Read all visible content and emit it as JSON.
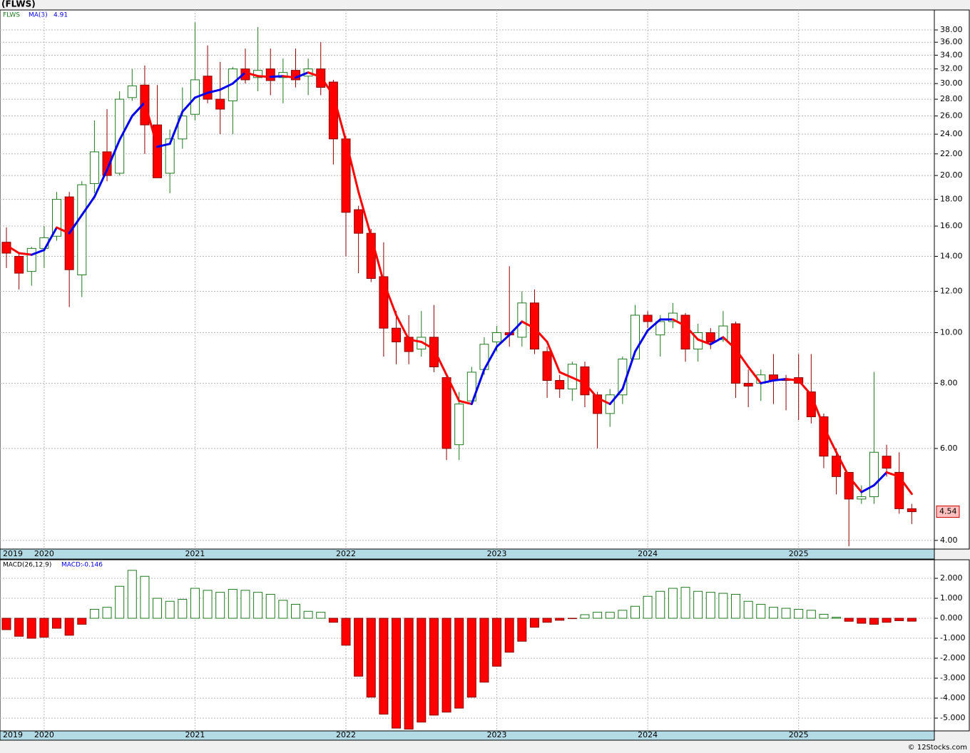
{
  "chart_data": [
    {
      "type": "candlestick",
      "title": "(FLWS)",
      "symbol": "FLWS",
      "categories": [
        "2019",
        null,
        null,
        "2020",
        null,
        null,
        null,
        null,
        null,
        null,
        null,
        null,
        null,
        null,
        null,
        "2021",
        null,
        null,
        null,
        null,
        null,
        null,
        null,
        null,
        null,
        null,
        null,
        "2022",
        null,
        null,
        null,
        null,
        null,
        null,
        null,
        null,
        null,
        null,
        null,
        "2023",
        null,
        null,
        null,
        null,
        null,
        null,
        null,
        null,
        null,
        null,
        null,
        "2024",
        null,
        null,
        null,
        null,
        null,
        null,
        null,
        null,
        null,
        null,
        null,
        "2025",
        null,
        null,
        null,
        null,
        null,
        null,
        null,
        null,
        null
      ],
      "open": [
        14.9,
        14.0,
        13.1,
        14.5,
        15.3,
        18.2,
        12.9,
        19.3,
        22.2,
        20.2,
        28.2,
        29.8,
        25.0,
        20.2,
        23.5,
        26.2,
        31.0,
        28.0,
        27.8,
        32.0,
        30.8,
        32.0,
        30.8,
        31.8,
        31.0,
        32.0,
        30.2,
        23.5,
        17.2,
        15.5,
        12.8,
        10.2,
        9.8,
        9.3,
        9.8,
        8.2,
        6.1,
        7.4,
        8.5,
        9.6,
        10.0,
        9.8,
        11.4,
        9.2,
        8.1,
        7.8,
        8.6,
        7.6,
        7.0,
        7.6,
        8.9,
        10.8,
        9.9,
        10.5,
        10.8,
        9.3,
        10.0,
        9.7,
        10.4,
        8.0,
        8.0,
        8.3,
        8.15,
        8.2,
        7.7,
        6.9,
        5.8,
        5.4,
        4.8,
        4.85,
        5.8,
        5.4,
        4.6
      ],
      "high": [
        15.9,
        14.2,
        14.6,
        16.0,
        18.6,
        18.6,
        19.5,
        25.5,
        26.8,
        29.0,
        32.0,
        32.5,
        29.8,
        24.5,
        29.5,
        39.3,
        35.5,
        33.0,
        32.3,
        35.0,
        38.5,
        35.0,
        33.5,
        35.0,
        33.5,
        36.0,
        30.5,
        23.8,
        17.5,
        15.8,
        14.9,
        11.0,
        10.8,
        11.0,
        11.3,
        8.3,
        7.7,
        8.6,
        9.8,
        10.3,
        13.4,
        12.0,
        12.1,
        9.4,
        8.3,
        8.8,
        8.8,
        7.7,
        7.8,
        9.0,
        11.3,
        11.0,
        10.8,
        11.4,
        10.9,
        10.4,
        10.2,
        11.0,
        10.5,
        8.5,
        8.5,
        9.1,
        8.3,
        9.1,
        9.1,
        7.0,
        6.0,
        5.4,
        5.1,
        8.4,
        6.1,
        5.9,
        4.7
      ],
      "low": [
        13.3,
        12.1,
        12.3,
        13.3,
        15.0,
        11.2,
        11.7,
        18.5,
        19.5,
        20.0,
        27.8,
        22.0,
        19.8,
        18.5,
        22.5,
        25.5,
        27.5,
        24.0,
        24.0,
        30.0,
        29.0,
        28.5,
        27.5,
        29.5,
        28.5,
        28.5,
        21.0,
        14.0,
        13.0,
        12.5,
        9.0,
        8.7,
        8.7,
        9.0,
        8.4,
        5.7,
        5.7,
        7.3,
        8.3,
        9.2,
        9.4,
        9.4,
        9.1,
        7.5,
        7.5,
        7.4,
        7.2,
        6.0,
        6.6,
        7.3,
        8.9,
        10.2,
        9.0,
        10.2,
        8.8,
        8.8,
        9.3,
        9.6,
        7.5,
        7.2,
        7.4,
        7.3,
        7.1,
        6.8,
        6.7,
        5.5,
        4.9,
        3.9,
        4.7,
        4.7,
        5.3,
        4.5,
        4.3
      ],
      "close": [
        14.2,
        13.0,
        14.5,
        15.2,
        18.0,
        13.2,
        19.2,
        22.2,
        20.0,
        28.0,
        29.7,
        25.0,
        19.8,
        23.5,
        26.0,
        30.5,
        28.0,
        26.8,
        32.0,
        30.5,
        31.8,
        30.4,
        31.5,
        30.5,
        32.0,
        29.5,
        23.5,
        17.0,
        15.5,
        12.7,
        10.2,
        9.6,
        9.2,
        9.8,
        8.6,
        6.0,
        7.3,
        8.4,
        9.5,
        10.0,
        9.9,
        11.4,
        9.3,
        8.1,
        7.8,
        8.7,
        7.6,
        7.0,
        7.6,
        8.9,
        10.8,
        10.5,
        10.5,
        10.9,
        9.3,
        10.0,
        9.6,
        10.3,
        8.0,
        7.9,
        8.3,
        8.1,
        8.1,
        8.0,
        6.9,
        5.8,
        5.3,
        4.8,
        4.85,
        5.9,
        5.5,
        4.6,
        4.54
      ],
      "up_color": "#1f7a1f",
      "down_color": "#ff0000",
      "ma": {
        "name": "MA(3)",
        "up_color": "#0000ee",
        "down_color": "#ff0000",
        "values": [
          14.7,
          14.2,
          14.1,
          14.4,
          15.9,
          15.5,
          16.8,
          18.2,
          20.5,
          23.4,
          26.0,
          27.6,
          22.7,
          23.0,
          26.5,
          28.2,
          28.8,
          29.2,
          30.0,
          31.5,
          31.0,
          30.9,
          31.0,
          30.8,
          31.5,
          30.9,
          28.5,
          23.3,
          18.6,
          15.3,
          12.5,
          10.8,
          9.7,
          9.6,
          9.3,
          8.3,
          7.4,
          7.3,
          8.5,
          9.4,
          9.9,
          10.5,
          10.2,
          9.6,
          8.4,
          8.2,
          8.0,
          7.5,
          7.3,
          7.8,
          9.2,
          10.1,
          10.6,
          10.6,
          10.3,
          9.7,
          9.5,
          9.8,
          9.3,
          8.6,
          8.0,
          8.1,
          8.15,
          8.1,
          7.6,
          6.6,
          5.9,
          5.3,
          4.95,
          5.1,
          5.4,
          5.3,
          4.91
        ]
      },
      "log_scale": true,
      "grid": true,
      "ylim": [
        3.85,
        41.5
      ],
      "yticks": [
        {
          "value": 4,
          "label": "4.00"
        },
        {
          "value": 6,
          "label": "6.00"
        },
        {
          "value": 8,
          "label": "8.00"
        },
        {
          "value": 10,
          "label": "10.00"
        },
        {
          "value": 12,
          "label": "12.00"
        },
        {
          "value": 14,
          "label": "14.00"
        },
        {
          "value": 16,
          "label": "16.00"
        },
        {
          "value": 18,
          "label": "18.00"
        },
        {
          "value": 20,
          "label": "20.00"
        },
        {
          "value": 22,
          "label": "22.00"
        },
        {
          "value": 24,
          "label": "24.00"
        },
        {
          "value": 26,
          "label": "26.00"
        },
        {
          "value": 28,
          "label": "28.00"
        },
        {
          "value": 30,
          "label": "30.00"
        },
        {
          "value": 32,
          "label": "32.00"
        },
        {
          "value": 34,
          "label": "34.00"
        },
        {
          "value": 36,
          "label": "36.00"
        },
        {
          "value": 38,
          "label": "38.00"
        }
      ]
    },
    {
      "type": "bar",
      "name": "MACD(26,12,9)",
      "current_label": "MACD:",
      "up_color": "#1f7a1f",
      "down_color": "#ff0000",
      "values": [
        -0.57,
        -0.9,
        -1.0,
        -0.95,
        -0.5,
        -0.85,
        -0.3,
        0.45,
        0.55,
        1.6,
        2.4,
        2.1,
        1.0,
        0.85,
        0.95,
        1.5,
        1.4,
        1.3,
        1.45,
        1.4,
        1.3,
        1.2,
        0.9,
        0.7,
        0.35,
        0.3,
        -0.2,
        -1.35,
        -2.9,
        -3.95,
        -4.8,
        -5.5,
        -5.55,
        -5.2,
        -4.85,
        -4.7,
        -4.5,
        -3.95,
        -3.2,
        -2.4,
        -1.7,
        -1.15,
        -0.45,
        -0.2,
        -0.1,
        -0.02,
        0.18,
        0.3,
        0.3,
        0.4,
        0.6,
        1.1,
        1.35,
        1.5,
        1.55,
        1.35,
        1.3,
        1.25,
        1.2,
        0.85,
        0.7,
        0.55,
        0.5,
        0.45,
        0.4,
        0.2,
        0.05,
        -0.15,
        -0.25,
        -0.3,
        -0.2,
        -0.12,
        -0.146
      ],
      "grid": true,
      "ylim": [
        -5.64,
        2.93
      ],
      "yticks": [
        {
          "value": -5,
          "label": "-5.000"
        },
        {
          "value": -4,
          "label": "-4.000"
        },
        {
          "value": -3,
          "label": "-3.000"
        },
        {
          "value": -2,
          "label": "-2.000"
        },
        {
          "value": -1,
          "label": "-1.000"
        },
        {
          "value": 0,
          "label": "0.000"
        },
        {
          "value": 1,
          "label": "1.000"
        },
        {
          "value": 2,
          "label": "2.000"
        }
      ]
    }
  ],
  "footer": "© 12Stocks.com"
}
